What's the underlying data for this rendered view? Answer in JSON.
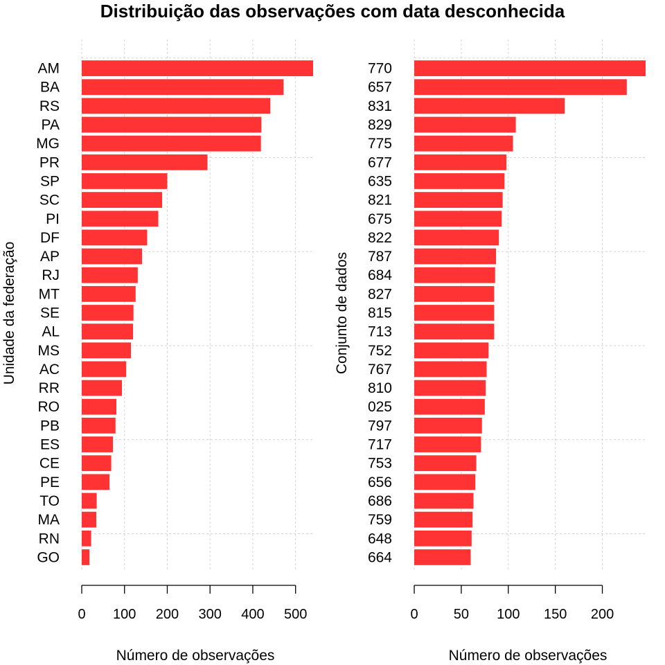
{
  "title": "Distribuição das observações com data desconhecida",
  "chart_data": [
    {
      "type": "bar",
      "orientation": "horizontal",
      "ylabel": "Unidade da federação",
      "xlabel": "Número de observações",
      "categories": [
        "AM",
        "BA",
        "RS",
        "PA",
        "MG",
        "PR",
        "SP",
        "SC",
        "PI",
        "DF",
        "AP",
        "RJ",
        "MT",
        "SE",
        "AL",
        "MS",
        "AC",
        "RR",
        "RO",
        "PB",
        "ES",
        "CE",
        "PE",
        "TO",
        "MA",
        "RN",
        "GO"
      ],
      "values": [
        541,
        472,
        441,
        420,
        419,
        294,
        200,
        188,
        179,
        153,
        141,
        131,
        126,
        121,
        120,
        115,
        104,
        94,
        81,
        79,
        73,
        69,
        65,
        35,
        34,
        22,
        18
      ],
      "xlim": [
        0,
        541
      ],
      "xticks": [
        "0",
        "100",
        "200",
        "300",
        "400",
        "500"
      ],
      "grid": true,
      "color": "#ff3333"
    },
    {
      "type": "bar",
      "orientation": "horizontal",
      "ylabel": "Conjunto de dados",
      "xlabel": "Número de observações",
      "categories": [
        "770",
        "657",
        "831",
        "829",
        "775",
        "677",
        "635",
        "821",
        "675",
        "822",
        "787",
        "684",
        "827",
        "815",
        "713",
        "752",
        "767",
        "810",
        "025",
        "797",
        "717",
        "753",
        "656",
        "686",
        "759",
        "648",
        "664"
      ],
      "values": [
        246,
        226,
        160,
        108,
        105,
        98,
        96,
        94,
        93,
        90,
        87,
        86,
        85,
        85,
        85,
        79,
        77,
        76,
        75,
        72,
        71,
        66,
        65,
        63,
        62,
        61,
        60
      ],
      "xlim": [
        0,
        246
      ],
      "xticks": [
        "0",
        "50",
        "100",
        "150",
        "200"
      ],
      "grid": true,
      "color": "#ff3333"
    }
  ]
}
